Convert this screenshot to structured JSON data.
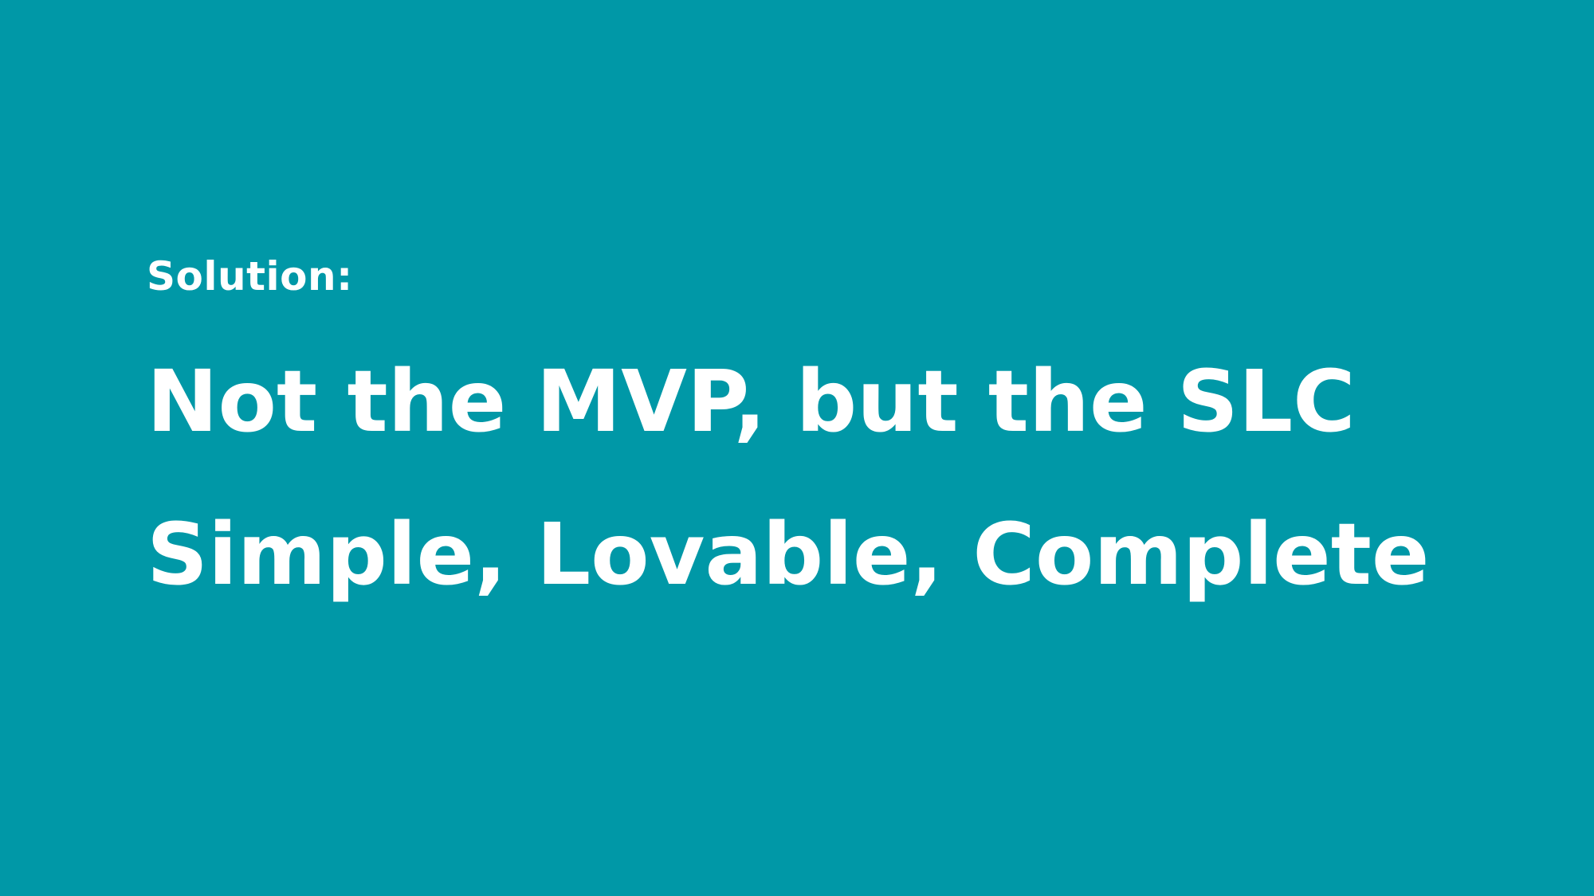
{
  "slide": {
    "background_color": "#0098a7",
    "text_color": "#ffffff",
    "label": "Solution:",
    "headline_line1": "Not the MVP, but the SLC",
    "headline_line2": "Simple, Lovable, Complete"
  }
}
